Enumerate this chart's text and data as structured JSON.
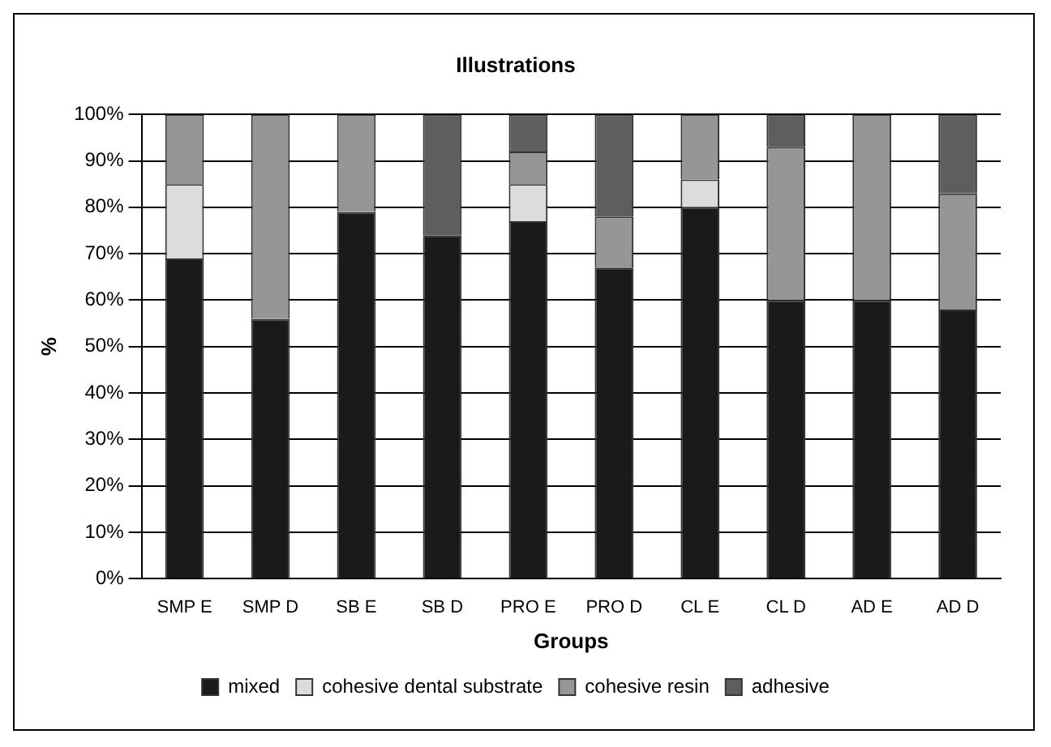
{
  "chart_data": {
    "type": "bar",
    "title": "Illustrations",
    "xlabel": "Groups",
    "ylabel": "%",
    "stacked": true,
    "categories": [
      "SMP E",
      "SMP D",
      "SB E",
      "SB D",
      "PRO E",
      "PRO D",
      "CL E",
      "CL D",
      "AD E",
      "AD D"
    ],
    "series": [
      {
        "name": "mixed",
        "color": "#1a1a1a",
        "values": [
          69,
          56,
          79,
          74,
          77,
          67,
          80,
          60,
          60,
          58
        ]
      },
      {
        "name": "cohesive dental substrate",
        "color": "#dcdcdc",
        "values": [
          16,
          0,
          0,
          0,
          8,
          0,
          6,
          0,
          0,
          0
        ]
      },
      {
        "name": "cohesive resin",
        "color": "#969696",
        "values": [
          15,
          44,
          21,
          0,
          7,
          11,
          14,
          33,
          40,
          25
        ]
      },
      {
        "name": "adhesive",
        "color": "#5e5e5e",
        "values": [
          0,
          0,
          0,
          26,
          8,
          22,
          0,
          7,
          0,
          17
        ]
      }
    ],
    "ylim": [
      0,
      100
    ],
    "yticks": [
      {
        "value": 0,
        "label": "0%"
      },
      {
        "value": 10,
        "label": "10%"
      },
      {
        "value": 20,
        "label": "20%"
      },
      {
        "value": 30,
        "label": "30%"
      },
      {
        "value": 40,
        "label": "40%"
      },
      {
        "value": 50,
        "label": "50%"
      },
      {
        "value": 60,
        "label": "60%"
      },
      {
        "value": 70,
        "label": "70%"
      },
      {
        "value": 80,
        "label": "80%"
      },
      {
        "value": 90,
        "label": "90%"
      },
      {
        "value": 100,
        "label": "100%"
      }
    ],
    "grid": "y",
    "legend": "bottom"
  }
}
